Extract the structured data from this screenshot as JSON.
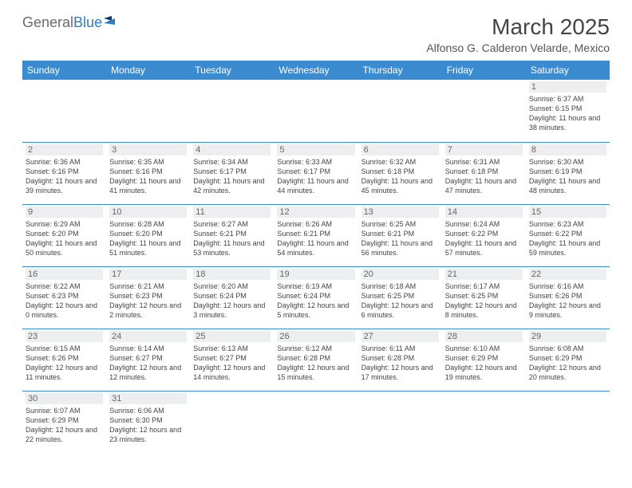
{
  "logo": {
    "part1": "General",
    "part2": "Blue"
  },
  "title": "March 2025",
  "subtitle": "Alfonso G. Calderon Velarde, Mexico",
  "colors": {
    "header_bg": "#3b8bd0",
    "header_fg": "#ffffff",
    "daynum_bg": "#eceef0",
    "border": "#3b8bd0",
    "logo_gray": "#6a6a6a",
    "logo_blue": "#2f7cc0"
  },
  "dayHeaders": [
    "Sunday",
    "Monday",
    "Tuesday",
    "Wednesday",
    "Thursday",
    "Friday",
    "Saturday"
  ],
  "weeks": [
    [
      null,
      null,
      null,
      null,
      null,
      null,
      {
        "n": "1",
        "sunrise": "6:37 AM",
        "sunset": "6:15 PM",
        "daylight": "11 hours and 38 minutes."
      }
    ],
    [
      {
        "n": "2",
        "sunrise": "6:36 AM",
        "sunset": "6:16 PM",
        "daylight": "11 hours and 39 minutes."
      },
      {
        "n": "3",
        "sunrise": "6:35 AM",
        "sunset": "6:16 PM",
        "daylight": "11 hours and 41 minutes."
      },
      {
        "n": "4",
        "sunrise": "6:34 AM",
        "sunset": "6:17 PM",
        "daylight": "11 hours and 42 minutes."
      },
      {
        "n": "5",
        "sunrise": "6:33 AM",
        "sunset": "6:17 PM",
        "daylight": "11 hours and 44 minutes."
      },
      {
        "n": "6",
        "sunrise": "6:32 AM",
        "sunset": "6:18 PM",
        "daylight": "11 hours and 45 minutes."
      },
      {
        "n": "7",
        "sunrise": "6:31 AM",
        "sunset": "6:18 PM",
        "daylight": "11 hours and 47 minutes."
      },
      {
        "n": "8",
        "sunrise": "6:30 AM",
        "sunset": "6:19 PM",
        "daylight": "11 hours and 48 minutes."
      }
    ],
    [
      {
        "n": "9",
        "sunrise": "6:29 AM",
        "sunset": "6:20 PM",
        "daylight": "11 hours and 50 minutes."
      },
      {
        "n": "10",
        "sunrise": "6:28 AM",
        "sunset": "6:20 PM",
        "daylight": "11 hours and 51 minutes."
      },
      {
        "n": "11",
        "sunrise": "6:27 AM",
        "sunset": "6:21 PM",
        "daylight": "11 hours and 53 minutes."
      },
      {
        "n": "12",
        "sunrise": "6:26 AM",
        "sunset": "6:21 PM",
        "daylight": "11 hours and 54 minutes."
      },
      {
        "n": "13",
        "sunrise": "6:25 AM",
        "sunset": "6:21 PM",
        "daylight": "11 hours and 56 minutes."
      },
      {
        "n": "14",
        "sunrise": "6:24 AM",
        "sunset": "6:22 PM",
        "daylight": "11 hours and 57 minutes."
      },
      {
        "n": "15",
        "sunrise": "6:23 AM",
        "sunset": "6:22 PM",
        "daylight": "11 hours and 59 minutes."
      }
    ],
    [
      {
        "n": "16",
        "sunrise": "6:22 AM",
        "sunset": "6:23 PM",
        "daylight": "12 hours and 0 minutes."
      },
      {
        "n": "17",
        "sunrise": "6:21 AM",
        "sunset": "6:23 PM",
        "daylight": "12 hours and 2 minutes."
      },
      {
        "n": "18",
        "sunrise": "6:20 AM",
        "sunset": "6:24 PM",
        "daylight": "12 hours and 3 minutes."
      },
      {
        "n": "19",
        "sunrise": "6:19 AM",
        "sunset": "6:24 PM",
        "daylight": "12 hours and 5 minutes."
      },
      {
        "n": "20",
        "sunrise": "6:18 AM",
        "sunset": "6:25 PM",
        "daylight": "12 hours and 6 minutes."
      },
      {
        "n": "21",
        "sunrise": "6:17 AM",
        "sunset": "6:25 PM",
        "daylight": "12 hours and 8 minutes."
      },
      {
        "n": "22",
        "sunrise": "6:16 AM",
        "sunset": "6:26 PM",
        "daylight": "12 hours and 9 minutes."
      }
    ],
    [
      {
        "n": "23",
        "sunrise": "6:15 AM",
        "sunset": "6:26 PM",
        "daylight": "12 hours and 11 minutes."
      },
      {
        "n": "24",
        "sunrise": "6:14 AM",
        "sunset": "6:27 PM",
        "daylight": "12 hours and 12 minutes."
      },
      {
        "n": "25",
        "sunrise": "6:13 AM",
        "sunset": "6:27 PM",
        "daylight": "12 hours and 14 minutes."
      },
      {
        "n": "26",
        "sunrise": "6:12 AM",
        "sunset": "6:28 PM",
        "daylight": "12 hours and 15 minutes."
      },
      {
        "n": "27",
        "sunrise": "6:11 AM",
        "sunset": "6:28 PM",
        "daylight": "12 hours and 17 minutes."
      },
      {
        "n": "28",
        "sunrise": "6:10 AM",
        "sunset": "6:29 PM",
        "daylight": "12 hours and 19 minutes."
      },
      {
        "n": "29",
        "sunrise": "6:08 AM",
        "sunset": "6:29 PM",
        "daylight": "12 hours and 20 minutes."
      }
    ],
    [
      {
        "n": "30",
        "sunrise": "6:07 AM",
        "sunset": "6:29 PM",
        "daylight": "12 hours and 22 minutes."
      },
      {
        "n": "31",
        "sunrise": "6:06 AM",
        "sunset": "6:30 PM",
        "daylight": "12 hours and 23 minutes."
      },
      null,
      null,
      null,
      null,
      null
    ]
  ],
  "labels": {
    "sunrise": "Sunrise: ",
    "sunset": "Sunset: ",
    "daylight": "Daylight: "
  }
}
